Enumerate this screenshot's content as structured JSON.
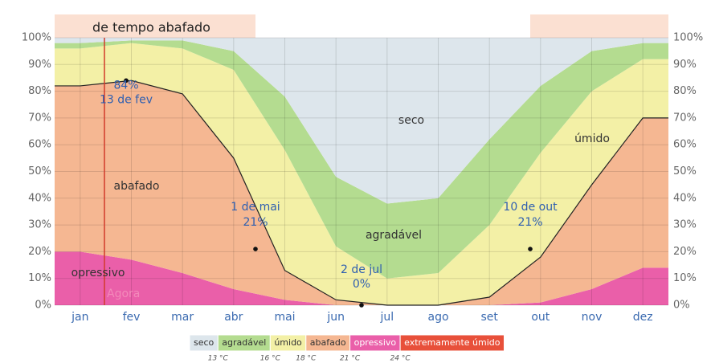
{
  "chart_data": {
    "type": "stacked_area",
    "title": "de tempo abafado",
    "categories": [
      "jan",
      "fev",
      "mar",
      "abr",
      "mai",
      "jun",
      "jul",
      "ago",
      "set",
      "out",
      "nov",
      "dez"
    ],
    "series": [
      {
        "name": "opressivo",
        "color": "#ea5fa9",
        "values": [
          20,
          17,
          12,
          6,
          2,
          0,
          0,
          0,
          0,
          1,
          6,
          14
        ]
      },
      {
        "name": "abafado",
        "color": "#f5b792",
        "values": [
          62,
          67,
          67,
          49,
          11,
          2,
          0,
          0,
          3,
          17,
          39,
          56
        ]
      },
      {
        "name": "úmido",
        "color": "#f3f0a6",
        "values": [
          14,
          14,
          17,
          33,
          45,
          20,
          10,
          12,
          27,
          39,
          35,
          22
        ]
      },
      {
        "name": "agradável",
        "color": "#b4dc90",
        "values": [
          2,
          1,
          3,
          7,
          20,
          26,
          28,
          28,
          32,
          25,
          15,
          6
        ]
      },
      {
        "name": "seco",
        "color": "#dde6ec",
        "values": [
          2,
          1,
          1,
          5,
          22,
          52,
          62,
          60,
          38,
          18,
          5,
          2
        ]
      }
    ],
    "ylim": [
      0,
      100
    ],
    "yticks": [
      {
        "value": 0,
        "label": "0%"
      },
      {
        "value": 10,
        "label": "10%"
      },
      {
        "value": 20,
        "label": "20%"
      },
      {
        "value": 30,
        "label": "30%"
      },
      {
        "value": 40,
        "label": "40%"
      },
      {
        "value": 50,
        "label": "50%"
      },
      {
        "value": 60,
        "label": "60%"
      },
      {
        "value": 70,
        "label": "70%"
      },
      {
        "value": 80,
        "label": "80%"
      },
      {
        "value": 90,
        "label": "90%"
      },
      {
        "value": 100,
        "label": "100%"
      }
    ],
    "grid": true,
    "now_label": "Agora",
    "region_labels": [
      "seco",
      "agradável",
      "úmido",
      "abafado",
      "opressivo"
    ],
    "annotations": [
      {
        "value": 84,
        "lines": [
          "84%",
          "13 de fev"
        ]
      },
      {
        "value": 21,
        "lines": [
          "1 de mai",
          "21%"
        ]
      },
      {
        "value": 0,
        "lines": [
          "2 de jul",
          "0%"
        ]
      },
      {
        "value": 21,
        "lines": [
          "10 de out",
          "21%"
        ]
      }
    ],
    "legend": [
      {
        "name": "seco",
        "color": "#dde6ec"
      },
      {
        "name": "agradável",
        "color": "#b4dc90"
      },
      {
        "name": "úmido",
        "color": "#f3f0a6"
      },
      {
        "name": "abafado",
        "color": "#f5b792"
      },
      {
        "name": "opressivo",
        "color": "#ea5fa9"
      },
      {
        "name": "extremamente úmido",
        "color": "#e8503a"
      }
    ],
    "thresholds": [
      "13 °C",
      "16 °C",
      "18 °C",
      "21 °C",
      "24 °C"
    ]
  }
}
